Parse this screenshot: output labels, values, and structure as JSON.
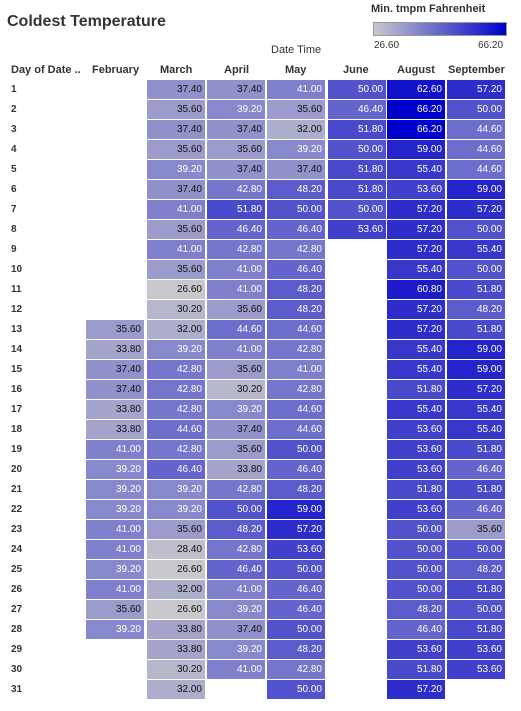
{
  "chart_data": {
    "type": "heatmap",
    "title": "Coldest Temperature",
    "column_group_label": "Date Time",
    "row_header": "Day of Date ..",
    "legend": {
      "title": "Min. tmpm Fahrenheit",
      "min_label": "26.60",
      "max_label": "66.20",
      "min": 26.6,
      "max": 66.2,
      "low_color": "#c8c8cc",
      "high_color": "#0000cc"
    },
    "columns": [
      "February",
      "March",
      "April",
      "May",
      "June",
      "August",
      "September"
    ],
    "rows": [
      "1",
      "2",
      "3",
      "4",
      "5",
      "6",
      "7",
      "8",
      "9",
      "10",
      "11",
      "12",
      "13",
      "14",
      "15",
      "16",
      "17",
      "18",
      "19",
      "20",
      "21",
      "22",
      "23",
      "24",
      "25",
      "26",
      "27",
      "28",
      "29",
      "30",
      "31"
    ],
    "values": [
      [
        null,
        37.4,
        37.4,
        41.0,
        50.0,
        62.6,
        57.2
      ],
      [
        null,
        35.6,
        39.2,
        35.6,
        46.4,
        66.2,
        50.0
      ],
      [
        null,
        37.4,
        37.4,
        32.0,
        51.8,
        66.2,
        44.6
      ],
      [
        null,
        35.6,
        35.6,
        39.2,
        50.0,
        59.0,
        44.6
      ],
      [
        null,
        39.2,
        37.4,
        37.4,
        51.8,
        55.4,
        44.6
      ],
      [
        null,
        37.4,
        42.8,
        48.2,
        51.8,
        53.6,
        59.0
      ],
      [
        null,
        41.0,
        51.8,
        50.0,
        50.0,
        57.2,
        57.2
      ],
      [
        null,
        35.6,
        46.4,
        46.4,
        53.6,
        57.2,
        50.0
      ],
      [
        null,
        41.0,
        42.8,
        42.8,
        null,
        57.2,
        55.4
      ],
      [
        null,
        35.6,
        41.0,
        46.4,
        null,
        55.4,
        50.0
      ],
      [
        null,
        26.6,
        41.0,
        48.2,
        null,
        60.8,
        51.8
      ],
      [
        null,
        30.2,
        35.6,
        48.2,
        null,
        57.2,
        48.2
      ],
      [
        35.6,
        32.0,
        44.6,
        44.6,
        null,
        57.2,
        51.8
      ],
      [
        33.8,
        39.2,
        41.0,
        42.8,
        null,
        55.4,
        59.0
      ],
      [
        37.4,
        42.8,
        35.6,
        41.0,
        null,
        55.4,
        59.0
      ],
      [
        37.4,
        42.8,
        30.2,
        42.8,
        null,
        51.8,
        57.2
      ],
      [
        33.8,
        42.8,
        39.2,
        44.6,
        null,
        55.4,
        55.4
      ],
      [
        33.8,
        44.6,
        37.4,
        44.6,
        null,
        53.6,
        55.4
      ],
      [
        41.0,
        42.8,
        35.6,
        50.0,
        null,
        53.6,
        51.8
      ],
      [
        39.2,
        46.4,
        33.8,
        46.4,
        null,
        53.6,
        46.4
      ],
      [
        39.2,
        39.2,
        42.8,
        48.2,
        null,
        51.8,
        51.8
      ],
      [
        39.2,
        39.2,
        50.0,
        59.0,
        null,
        53.6,
        46.4
      ],
      [
        41.0,
        35.6,
        48.2,
        57.2,
        null,
        50.0,
        35.6
      ],
      [
        41.0,
        28.4,
        42.8,
        53.6,
        null,
        50.0,
        50.0
      ],
      [
        39.2,
        26.6,
        46.4,
        50.0,
        null,
        50.0,
        48.2
      ],
      [
        41.0,
        32.0,
        41.0,
        46.4,
        null,
        50.0,
        51.8
      ],
      [
        35.6,
        26.6,
        39.2,
        46.4,
        null,
        48.2,
        50.0
      ],
      [
        39.2,
        33.8,
        37.4,
        50.0,
        null,
        46.4,
        51.8
      ],
      [
        null,
        33.8,
        39.2,
        48.2,
        null,
        53.6,
        53.6
      ],
      [
        null,
        30.2,
        41.0,
        42.8,
        null,
        51.8,
        53.6
      ],
      [
        null,
        32.0,
        null,
        50.0,
        null,
        57.2,
        null
      ]
    ]
  }
}
